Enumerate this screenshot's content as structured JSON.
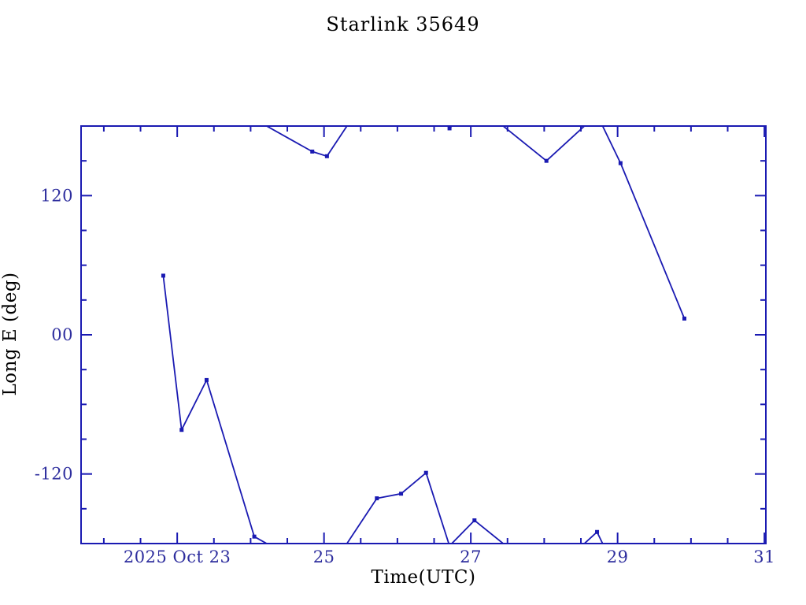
{
  "chart_data": {
    "type": "line",
    "title": "Starlink 35649",
    "xlabel": "Time(UTC)",
    "ylabel": "Long E (deg)",
    "x_axis": {
      "unit": "day of October 2025 (UTC)",
      "xlim": [
        21.69,
        31.02
      ],
      "major_ticks": [
        {
          "value": 23,
          "label": "2025 Oct 23"
        },
        {
          "value": 25,
          "label": "25"
        },
        {
          "value": 27,
          "label": "27"
        },
        {
          "value": 29,
          "label": "29"
        },
        {
          "value": 31,
          "label": "31"
        }
      ],
      "minor_tick_start": 22,
      "minor_tick_end": 31,
      "minor_tick_step": 0.5
    },
    "y_axis": {
      "unit": "degrees East longitude",
      "ylim": [
        -180,
        180
      ],
      "major_ticks": [
        {
          "value": 120,
          "label": "120"
        },
        {
          "value": 0,
          "label": "00"
        },
        {
          "value": -120,
          "label": "-120"
        }
      ],
      "minor_tick_step": 30
    },
    "grid": "off",
    "legend": "none",
    "marker": "filled-square",
    "line_wrap": "values wrap at +/-180 deg; connecting segments pass through top/bottom edges",
    "series": [
      {
        "name": "Starlink 35649 longitude",
        "points": [
          {
            "t": 22.81,
            "lon": 51
          },
          {
            "t": 23.06,
            "lon": -82
          },
          {
            "t": 23.4,
            "lon": -39
          },
          {
            "t": 24.05,
            "lon": -174
          },
          {
            "t": 24.84,
            "lon": 158
          },
          {
            "t": 25.04,
            "lon": 154
          },
          {
            "t": 25.72,
            "lon": -141
          },
          {
            "t": 26.05,
            "lon": -137
          },
          {
            "t": 26.39,
            "lon": -119
          },
          {
            "t": 26.71,
            "lon": 178
          },
          {
            "t": 27.05,
            "lon": -160
          },
          {
            "t": 28.03,
            "lon": 150
          },
          {
            "t": 28.72,
            "lon": -170
          },
          {
            "t": 29.04,
            "lon": 148
          },
          {
            "t": 29.91,
            "lon": 14
          }
        ]
      }
    ],
    "colors": {
      "line": "#1a1ab2",
      "marker": "#1a1ab2",
      "frame": "#1a1ab2",
      "text": "#2e2e9e",
      "background": "#ffffff"
    }
  }
}
